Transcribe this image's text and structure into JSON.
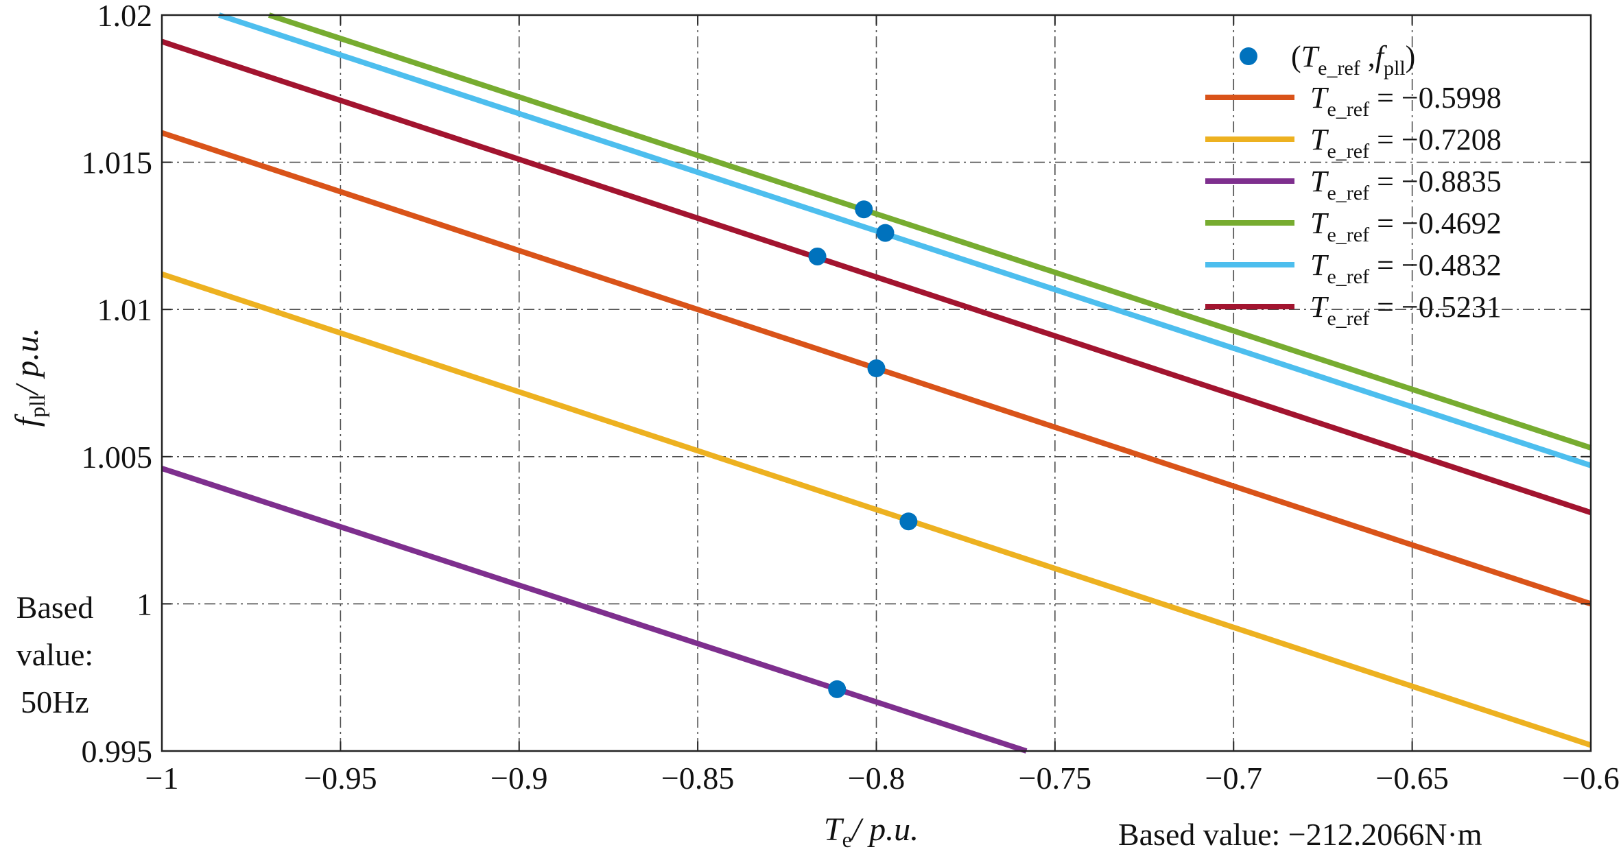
{
  "chart_data": {
    "type": "line",
    "title": "",
    "xlabel": {
      "symbol": "T",
      "sub": "e",
      "unit": "/ p.u."
    },
    "ylabel": {
      "symbol": "f",
      "sub": "pll",
      "unit": "/ p.u."
    },
    "xlim": [
      -1,
      -0.6
    ],
    "ylim": [
      0.995,
      1.02
    ],
    "grid": true,
    "x_ticks": [
      "−1",
      "−0.95",
      "−0.9",
      "−0.85",
      "−0.8",
      "−0.75",
      "−0.7",
      "−0.65",
      "−0.6"
    ],
    "y_ticks": [
      "0.995",
      "1",
      "1.005",
      "1.01",
      "1.015",
      "1.02"
    ],
    "x_tick_values": [
      -1,
      -0.95,
      -0.9,
      -0.85,
      -0.8,
      -0.75,
      -0.7,
      -0.65,
      -0.6
    ],
    "y_tick_values": [
      0.995,
      1,
      1.005,
      1.01,
      1.015,
      1.02
    ],
    "legend_position": "top-right",
    "scatter": {
      "name": "(T_e_ref , f_pll)",
      "color": "#0072BD",
      "legend_text": {
        "open": "(",
        "symbol1": "T",
        "sub1": "e_ref",
        "sep": " ,",
        "symbol2": "f",
        "sub2": "pll",
        "close": ")"
      },
      "points": [
        {
          "x": -0.8,
          "y": 1.008
        },
        {
          "x": -0.791,
          "y": 1.0028
        },
        {
          "x": -0.811,
          "y": 0.9971
        },
        {
          "x": -0.8035,
          "y": 1.0134
        },
        {
          "x": -0.7975,
          "y": 1.0126
        },
        {
          "x": -0.8165,
          "y": 1.0118
        }
      ]
    },
    "series": [
      {
        "name": "T_e_ref = −0.5998",
        "legend_value": "= −0.5998",
        "color": "#D95319",
        "x": [
          -1,
          -0.6
        ],
        "y": [
          1.016,
          1.0
        ]
      },
      {
        "name": "T_e_ref = −0.7208",
        "legend_value": "= −0.7208",
        "color": "#EDB120",
        "x": [
          -1,
          -0.6
        ],
        "y": [
          1.0112,
          0.9952
        ]
      },
      {
        "name": "T_e_ref = −0.8835",
        "legend_value": "= −0.8835",
        "color": "#7E2F8E",
        "x": [
          -1,
          -0.758
        ],
        "y": [
          1.0046,
          0.995
        ]
      },
      {
        "name": "T_e_ref = −0.4692",
        "legend_value": "= −0.4692",
        "color": "#77AC30",
        "x": [
          -0.97,
          -0.6
        ],
        "y": [
          1.02,
          1.0053
        ]
      },
      {
        "name": "T_e_ref = −0.4832",
        "legend_value": "= −0.4832",
        "color": "#4DBEEE",
        "x": [
          -0.984,
          -0.6
        ],
        "y": [
          1.02,
          1.0047
        ]
      },
      {
        "name": "T_e_ref = −0.5231",
        "legend_value": "= −0.5231",
        "color": "#A2142F",
        "x": [
          -1,
          -0.6
        ],
        "y": [
          1.0191,
          1.0031
        ]
      }
    ],
    "legend_symbol": "T",
    "legend_sub": "e_ref",
    "annotations": {
      "y_base_lines": [
        "Based",
        "value:",
        "50Hz"
      ],
      "x_base": "Based value: −212.2066N·m"
    }
  }
}
